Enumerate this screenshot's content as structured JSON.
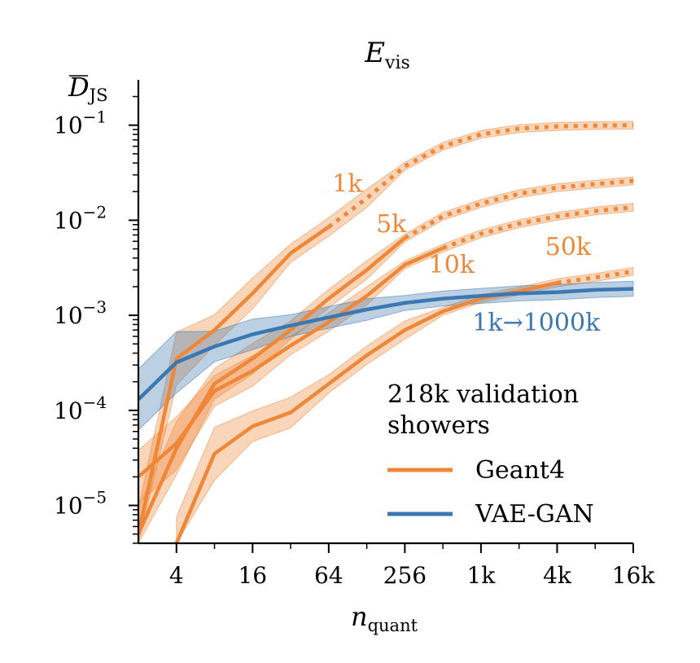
{
  "chart_data": {
    "type": "line",
    "title": "E",
    "title_sub": "vis",
    "xlabel": "n",
    "xlabel_sub": "quant",
    "ylabel": "D",
    "ylabel_sub": "JS",
    "x_scale": "log2",
    "y_scale": "log10",
    "xlim": [
      2,
      16384
    ],
    "ylim": [
      4e-06,
      0.3
    ],
    "grid": false,
    "x_ticks": [
      {
        "value": 4,
        "label": "4"
      },
      {
        "value": 16,
        "label": "16"
      },
      {
        "value": 64,
        "label": "64"
      },
      {
        "value": 256,
        "label": "256"
      },
      {
        "value": 1024,
        "label": "1k"
      },
      {
        "value": 4096,
        "label": "4k"
      },
      {
        "value": 16384,
        "label": "16k"
      }
    ],
    "y_ticks": [
      {
        "value": 1e-05,
        "base": "10",
        "exp": "−5"
      },
      {
        "value": 0.0001,
        "base": "10",
        "exp": "−4"
      },
      {
        "value": 0.001,
        "base": "10",
        "exp": "−3"
      },
      {
        "value": 0.01,
        "base": "10",
        "exp": "−2"
      },
      {
        "value": 0.1,
        "base": "10",
        "exp": "−1"
      }
    ],
    "colors": {
      "geant4": "#ee8838",
      "vaegan": "#3b77b0"
    },
    "series": [
      {
        "group": "geant4",
        "label": "1k",
        "label_at": {
          "x": 90,
          "y": 0.02
        },
        "solid_x": [
          2,
          4,
          8,
          16,
          32,
          64
        ],
        "solid_y": [
          5e-06,
          0.00035,
          0.0007,
          0.0017,
          0.0045,
          0.0085
        ],
        "dotted_x": [
          64,
          128,
          256,
          512,
          1024,
          2048,
          4096,
          8192,
          16384
        ],
        "dotted_y": [
          0.0085,
          0.017,
          0.037,
          0.06,
          0.08,
          0.092,
          0.097,
          0.099,
          0.1
        ]
      },
      {
        "group": "geant4",
        "label": "5k",
        "label_at": {
          "x": 200,
          "y": 0.0075
        },
        "solid_x": [
          2,
          4,
          8,
          16,
          32,
          64,
          128,
          256
        ],
        "solid_y": [
          5e-06,
          4e-05,
          0.00019,
          0.00035,
          0.0007,
          0.0015,
          0.003,
          0.0065
        ],
        "dotted_x": [
          256,
          512,
          1024,
          2048,
          4096,
          8192,
          16384
        ],
        "dotted_y": [
          0.0065,
          0.011,
          0.015,
          0.019,
          0.022,
          0.024,
          0.026
        ]
      },
      {
        "group": "geant4",
        "label": "10k",
        "label_at": {
          "x": 600,
          "y": 0.0028
        },
        "solid_x": [
          2,
          4,
          8,
          16,
          32,
          64,
          128,
          256,
          512
        ],
        "solid_y": [
          2e-05,
          4.5e-05,
          0.00016,
          0.00026,
          0.00048,
          0.00085,
          0.0016,
          0.0034,
          0.0051
        ],
        "dotted_x": [
          512,
          1024,
          2048,
          4096,
          8192,
          16384
        ],
        "dotted_y": [
          0.0051,
          0.0072,
          0.0092,
          0.011,
          0.0125,
          0.0137
        ]
      },
      {
        "group": "geant4",
        "label": "50k",
        "label_at": {
          "x": 5000,
          "y": 0.0043
        },
        "solid_x": [
          4,
          8,
          16,
          32,
          64,
          128,
          256,
          512,
          1024,
          2048,
          4096
        ],
        "solid_y": [
          4e-06,
          3.5e-05,
          6.8e-05,
          9.5e-05,
          0.00019,
          0.00038,
          0.0007,
          0.0011,
          0.0015,
          0.0018,
          0.0022
        ],
        "dotted_x": [
          4096,
          8192,
          16384
        ],
        "dotted_y": [
          0.0022,
          0.0025,
          0.0029
        ]
      },
      {
        "group": "vaegan",
        "label": "1k→1000k",
        "label_at": {
          "x": 2800,
          "y": 0.00069
        },
        "solid_x": [
          2,
          4,
          8,
          16,
          32,
          64,
          128,
          256,
          512,
          1024,
          2048,
          4096,
          8192,
          16384
        ],
        "solid_y": [
          0.00013,
          0.00032,
          0.00047,
          0.00063,
          0.00078,
          0.00095,
          0.00115,
          0.00135,
          0.0015,
          0.0016,
          0.0017,
          0.00175,
          0.00185,
          0.0019
        ],
        "dotted_x": [],
        "dotted_y": []
      }
    ],
    "legend": {
      "title_lines": [
        "218k validation",
        "showers"
      ],
      "entries": [
        {
          "group": "geant4",
          "label": "Geant4"
        },
        {
          "group": "vaegan",
          "label": "VAE-GAN"
        }
      ],
      "placement": "lower-right"
    }
  }
}
